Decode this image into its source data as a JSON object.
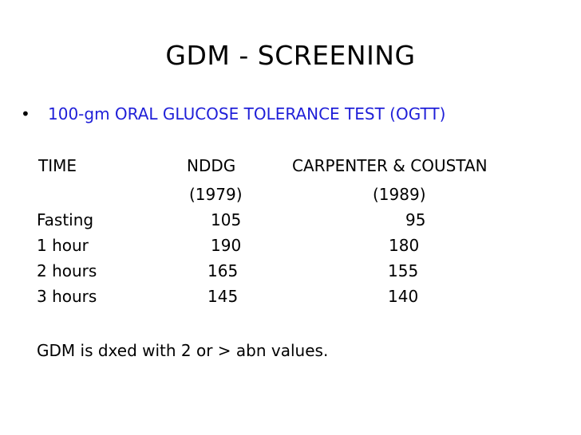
{
  "slide": {
    "title": "GDM - SCREENING",
    "bullet": {
      "symbol": "•",
      "text": "100-gm ORAL GLUCOSE TOLERANCE TEST (OGTT)",
      "color": "#1f1fd8"
    },
    "table": {
      "headers": [
        "TIME",
        "NDDG",
        "CARPENTER & COUSTAN"
      ],
      "subheaders": [
        "",
        "(1979)",
        "(1989)"
      ],
      "rows": [
        {
          "time": "Fasting",
          "nddg": "105",
          "cc": "95"
        },
        {
          "time": "1 hour",
          "nddg": "190",
          "cc": "180"
        },
        {
          "time": "2 hours",
          "nddg": "165",
          "cc": "155"
        },
        {
          "time": "3 hours",
          "nddg": "145",
          "cc": "140"
        }
      ]
    },
    "note": "GDM is dxed with 2 or > abn values."
  }
}
